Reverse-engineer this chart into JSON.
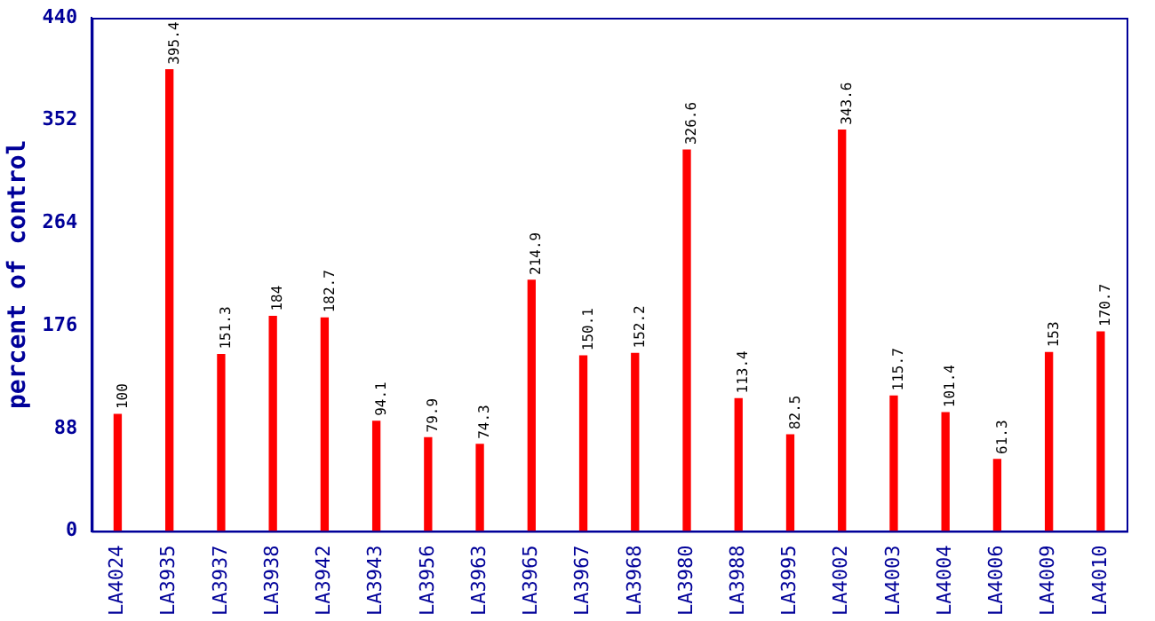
{
  "chart_data": {
    "type": "bar",
    "ylabel": "percent of control",
    "categories": [
      "LA4024",
      "LA3935",
      "LA3937",
      "LA3938",
      "LA3942",
      "LA3943",
      "LA3956",
      "LA3963",
      "LA3965",
      "LA3967",
      "LA3968",
      "LA3980",
      "LA3988",
      "LA3995",
      "LA4002",
      "LA4003",
      "LA4004",
      "LA4006",
      "LA4009",
      "LA4010"
    ],
    "values": [
      100,
      395.4,
      151.3,
      184,
      182.7,
      94.1,
      79.9,
      74.3,
      214.9,
      150.1,
      152.2,
      326.6,
      113.4,
      82.5,
      343.6,
      115.7,
      101.4,
      61.3,
      153,
      170.7
    ],
    "color": "#ff0000",
    "ylim": [
      0,
      440
    ],
    "yticks": [
      0,
      88,
      176,
      264,
      352,
      440
    ],
    "grid": false,
    "legend": false,
    "data_labels": true
  }
}
